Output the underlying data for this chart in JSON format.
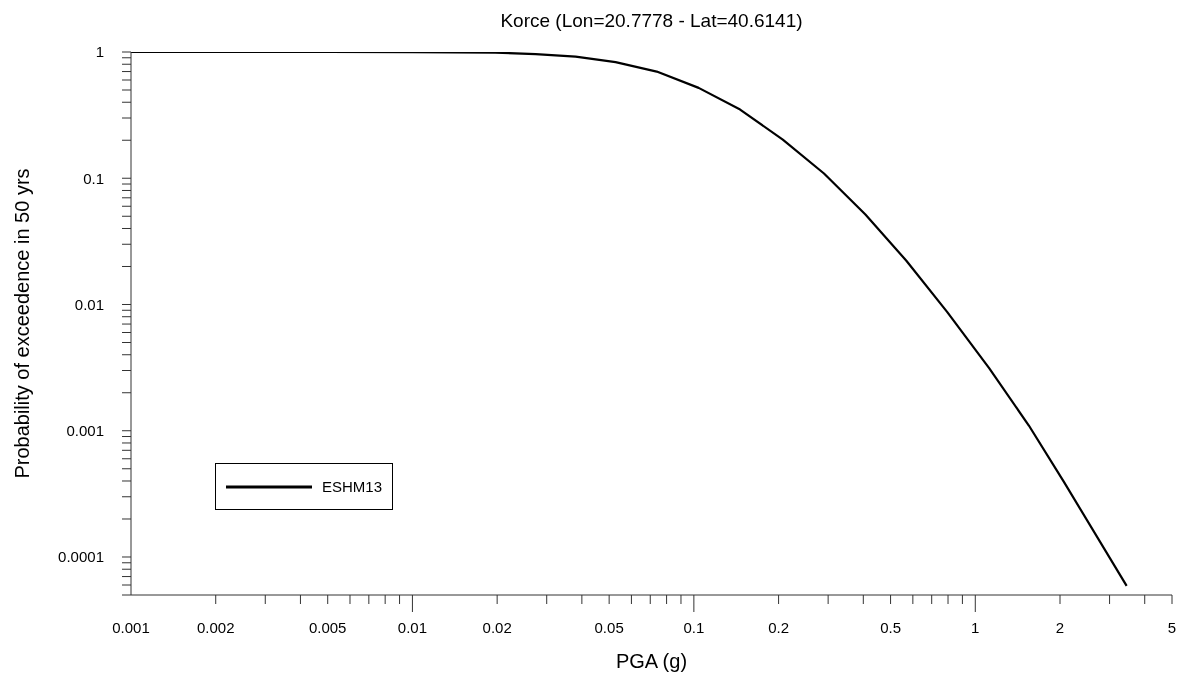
{
  "chart_data": {
    "type": "line",
    "title": "Korce (Lon=20.7778 - Lat=40.6141)",
    "xlabel": "PGA (g)",
    "ylabel": "Probability of exceedence in 50 yrs",
    "log": "xy",
    "legend": "bottom left",
    "line_style": "solid",
    "x": [
      0.001,
      0.005,
      0.01,
      0.0197,
      0.0274,
      0.038,
      0.0527,
      0.0738,
      0.104,
      0.146,
      0.207,
      0.29,
      0.407,
      0.568,
      0.794,
      1.12,
      1.55,
      2.07,
      3.45
    ],
    "series": [
      {
        "name": "ESHM13",
        "color": "#000000",
        "values": [
          1,
          1,
          0.998,
          0.99,
          0.962,
          0.918,
          0.832,
          0.7,
          0.52,
          0.35,
          0.202,
          0.109,
          0.0516,
          0.0223,
          0.00875,
          0.00313,
          0.0011,
          0.00039,
          5.9e-05
        ]
      }
    ],
    "xlim": [
      0.001,
      5
    ],
    "xticks": [
      0.001,
      0.002,
      {
        "value": 0.003,
        "label": null
      },
      {
        "value": 0.004,
        "label": null
      },
      0.005,
      {
        "value": 0.006,
        "label": null
      },
      {
        "value": 0.007,
        "label": null
      },
      {
        "value": 0.008,
        "label": null
      },
      {
        "value": 0.009,
        "label": null
      },
      0.01,
      0.02,
      {
        "value": 0.03,
        "label": null
      },
      {
        "value": 0.04,
        "label": null
      },
      0.05,
      {
        "value": 0.06,
        "label": null
      },
      {
        "value": 0.07,
        "label": null
      },
      {
        "value": 0.08,
        "label": null
      },
      {
        "value": 0.09,
        "label": null
      },
      0.1,
      0.2,
      {
        "value": 0.3,
        "label": null
      },
      {
        "value": 0.4,
        "label": null
      },
      0.5,
      {
        "value": 0.6,
        "label": null
      },
      {
        "value": 0.7,
        "label": null
      },
      {
        "value": 0.8,
        "label": null
      },
      {
        "value": 0.9,
        "label": null
      },
      1,
      2,
      {
        "value": 3,
        "label": null
      },
      {
        "value": 4,
        "label": null
      },
      5
    ],
    "ylim": [
      5e-05,
      1
    ],
    "yticks": [
      {
        "value": 5e-05,
        "label": null
      },
      {
        "value": 6e-05,
        "label": null
      },
      {
        "value": 7e-05,
        "label": null
      },
      {
        "value": 8e-05,
        "label": null
      },
      {
        "value": 9e-05,
        "label": null
      },
      0.0001,
      {
        "value": 0.0002,
        "label": null
      },
      {
        "value": 0.0003,
        "label": null
      },
      {
        "value": 0.0004,
        "label": null
      },
      {
        "value": 0.0005,
        "label": null
      },
      {
        "value": 0.0006,
        "label": null
      },
      {
        "value": 0.0007,
        "label": null
      },
      {
        "value": 0.0008,
        "label": null
      },
      {
        "value": 0.0009,
        "label": null
      },
      0.001,
      {
        "value": 0.002,
        "label": null
      },
      {
        "value": 0.003,
        "label": null
      },
      {
        "value": 0.004,
        "label": null
      },
      {
        "value": 0.005,
        "label": null
      },
      {
        "value": 0.006,
        "label": null
      },
      {
        "value": 0.007,
        "label": null
      },
      {
        "value": 0.008,
        "label": null
      },
      {
        "value": 0.009,
        "label": null
      },
      0.01,
      {
        "value": 0.02,
        "label": null
      },
      {
        "value": 0.03,
        "label": null
      },
      {
        "value": 0.04,
        "label": null
      },
      {
        "value": 0.05,
        "label": null
      },
      {
        "value": 0.06,
        "label": null
      },
      {
        "value": 0.07,
        "label": null
      },
      {
        "value": 0.08,
        "label": null
      },
      {
        "value": 0.09,
        "label": null
      },
      0.1,
      {
        "value": 0.2,
        "label": null
      },
      {
        "value": 0.3,
        "label": null
      },
      {
        "value": 0.4,
        "label": null
      },
      {
        "value": 0.5,
        "label": null
      },
      {
        "value": 0.6,
        "label": null
      },
      {
        "value": 0.7,
        "label": null
      },
      {
        "value": 0.8,
        "label": null
      },
      {
        "value": 0.9,
        "label": null
      },
      1
    ]
  }
}
